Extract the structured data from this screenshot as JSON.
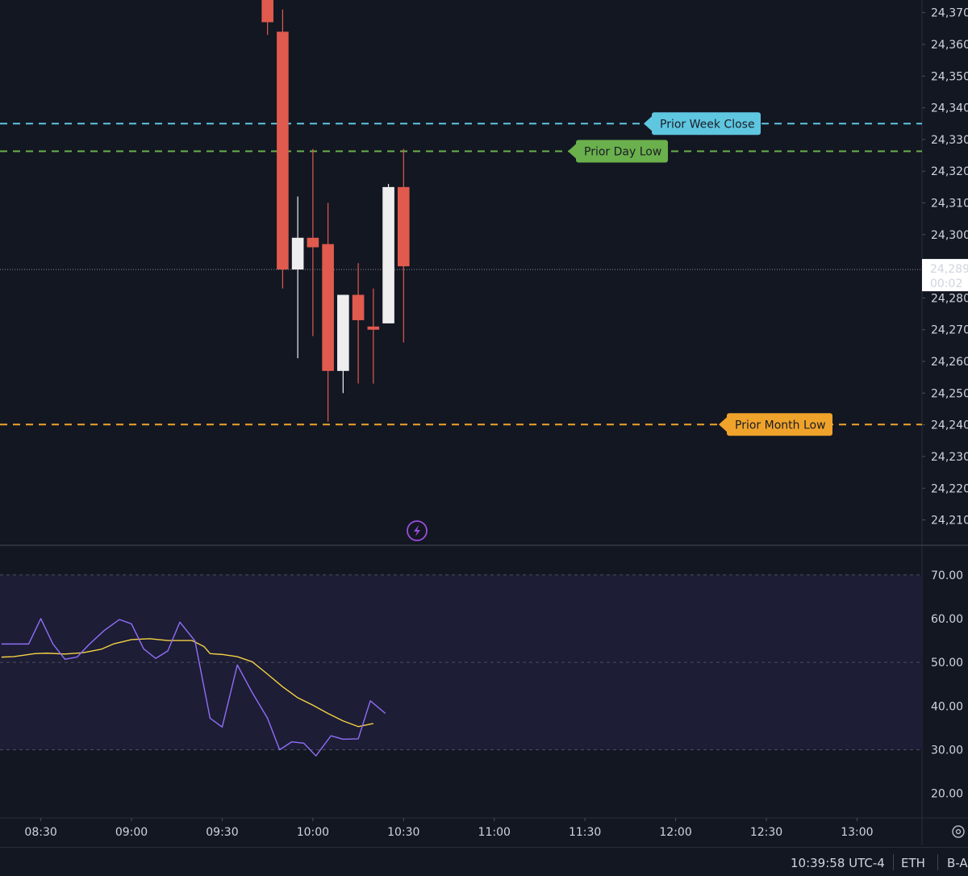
{
  "chart_data": {
    "type": "candlestick",
    "price_axis": {
      "ticks": [
        "24,370",
        "24,360",
        "24,350",
        "24,340",
        "24,330",
        "24,320",
        "24,310",
        "24,300",
        "24,280",
        "24,270",
        "24,260",
        "24,250",
        "24,240",
        "24,230",
        "24,220",
        "24,210"
      ],
      "tick_values": [
        24370,
        24360,
        24350,
        24340,
        24330,
        24320,
        24310,
        24300,
        24280,
        24270,
        24260,
        24250,
        24240,
        24230,
        24220,
        24210
      ],
      "ylim": [
        24202,
        24374
      ]
    },
    "time_axis": {
      "ticks": [
        "08:30",
        "09:00",
        "09:30",
        "10:00",
        "10:30",
        "11:00",
        "11:30",
        "12:00",
        "12:30",
        "13:00"
      ],
      "tick_minutes": [
        510,
        540,
        570,
        600,
        630,
        660,
        690,
        720,
        750,
        780
      ],
      "xlim": [
        496.5,
        801.5
      ]
    },
    "candles": [
      {
        "time": "09:45",
        "open": 24378,
        "high": 24390,
        "low": 24363,
        "close": 24367
      },
      {
        "time": "09:50",
        "open": 24364,
        "high": 24371,
        "low": 24283,
        "close": 24289
      },
      {
        "time": "09:55",
        "open": 24289,
        "high": 24312,
        "low": 24261,
        "close": 24299
      },
      {
        "time": "10:00",
        "open": 24299,
        "high": 24327,
        "low": 24268,
        "close": 24296
      },
      {
        "time": "10:05",
        "open": 24297,
        "high": 24310,
        "low": 24241,
        "close": 24257
      },
      {
        "time": "10:10",
        "open": 24257,
        "high": 24281,
        "low": 24250,
        "close": 24281
      },
      {
        "time": "10:15",
        "open": 24281,
        "high": 24291,
        "low": 24253,
        "close": 24273
      },
      {
        "time": "10:20",
        "open": 24271,
        "high": 24283,
        "low": 24253,
        "close": 24270
      },
      {
        "time": "10:25",
        "open": 24272,
        "high": 24316,
        "low": 24272,
        "close": 24315
      },
      {
        "time": "10:30",
        "open": 24315,
        "high": 24327,
        "low": 24266,
        "close": 24290
      }
    ],
    "current_price": {
      "label": "24,289",
      "countdown": "00:02",
      "value": 24289
    },
    "levels": [
      {
        "name": "Prior Week Close",
        "value": 24335,
        "color": "#5fc6e0"
      },
      {
        "name": "Prior Day Low",
        "value": 24326.3,
        "color": "#6ab04c"
      },
      {
        "name": "Prior Month Low",
        "value": 24240.1,
        "color": "#f0a32b"
      }
    ],
    "indicator": {
      "axis_ticks": [
        "70.00",
        "60.00",
        "50.00",
        "40.00",
        "30.00",
        "20.00"
      ],
      "tick_values": [
        70,
        60,
        50,
        40,
        30,
        20
      ],
      "ylim": [
        14.4,
        76.6
      ],
      "band": [
        30,
        70
      ],
      "rsi": {
        "color": "#8f6ff7",
        "points": [
          [
            497,
            54.2
          ],
          [
            506,
            54.2
          ],
          [
            510,
            60
          ],
          [
            514,
            54.2
          ],
          [
            518,
            50.7
          ],
          [
            522,
            51.2
          ],
          [
            526,
            54.1
          ],
          [
            531,
            57.3
          ],
          [
            536,
            59.8
          ],
          [
            540,
            58.8
          ],
          [
            544,
            53.1
          ],
          [
            548,
            50.9
          ],
          [
            552,
            52.6
          ],
          [
            556,
            59.2
          ],
          [
            561,
            54.9
          ],
          [
            566,
            37.2
          ],
          [
            570,
            35.2
          ],
          [
            575,
            49.4
          ],
          [
            580,
            43
          ],
          [
            585,
            37.2
          ],
          [
            589,
            30
          ],
          [
            593,
            31.8
          ],
          [
            597,
            31.5
          ],
          [
            601,
            28.6
          ],
          [
            606,
            33.2
          ],
          [
            610,
            32.4
          ],
          [
            615,
            32.5
          ],
          [
            619,
            41.2
          ],
          [
            624,
            38.3
          ]
        ]
      },
      "ma": {
        "color": "#f5d142",
        "points": [
          [
            497,
            51.2
          ],
          [
            501,
            51.3
          ],
          [
            508,
            52
          ],
          [
            512,
            52.1
          ],
          [
            518,
            51.9
          ],
          [
            524,
            52.2
          ],
          [
            530,
            53
          ],
          [
            534,
            54.2
          ],
          [
            540,
            55.2
          ],
          [
            546,
            55.4
          ],
          [
            552,
            55
          ],
          [
            560,
            55
          ],
          [
            564,
            53.6
          ],
          [
            566,
            52
          ],
          [
            570,
            51.8
          ],
          [
            575,
            51.3
          ],
          [
            580,
            50.1
          ],
          [
            585,
            47.3
          ],
          [
            590,
            44.4
          ],
          [
            595,
            41.9
          ],
          [
            600,
            40.2
          ],
          [
            605,
            38.3
          ],
          [
            610,
            36.6
          ],
          [
            615,
            35.3
          ],
          [
            620,
            36
          ]
        ]
      }
    }
  },
  "status_bar": {
    "time": "10:39:58 UTC-4",
    "session": "ETH",
    "extra": "B-A"
  },
  "colors": {
    "background": "#131722",
    "up_candle": "#eeeeee",
    "down_candle": "#e05a4e",
    "band_fill": "#1d1d36",
    "grid": "#2a2e39"
  }
}
